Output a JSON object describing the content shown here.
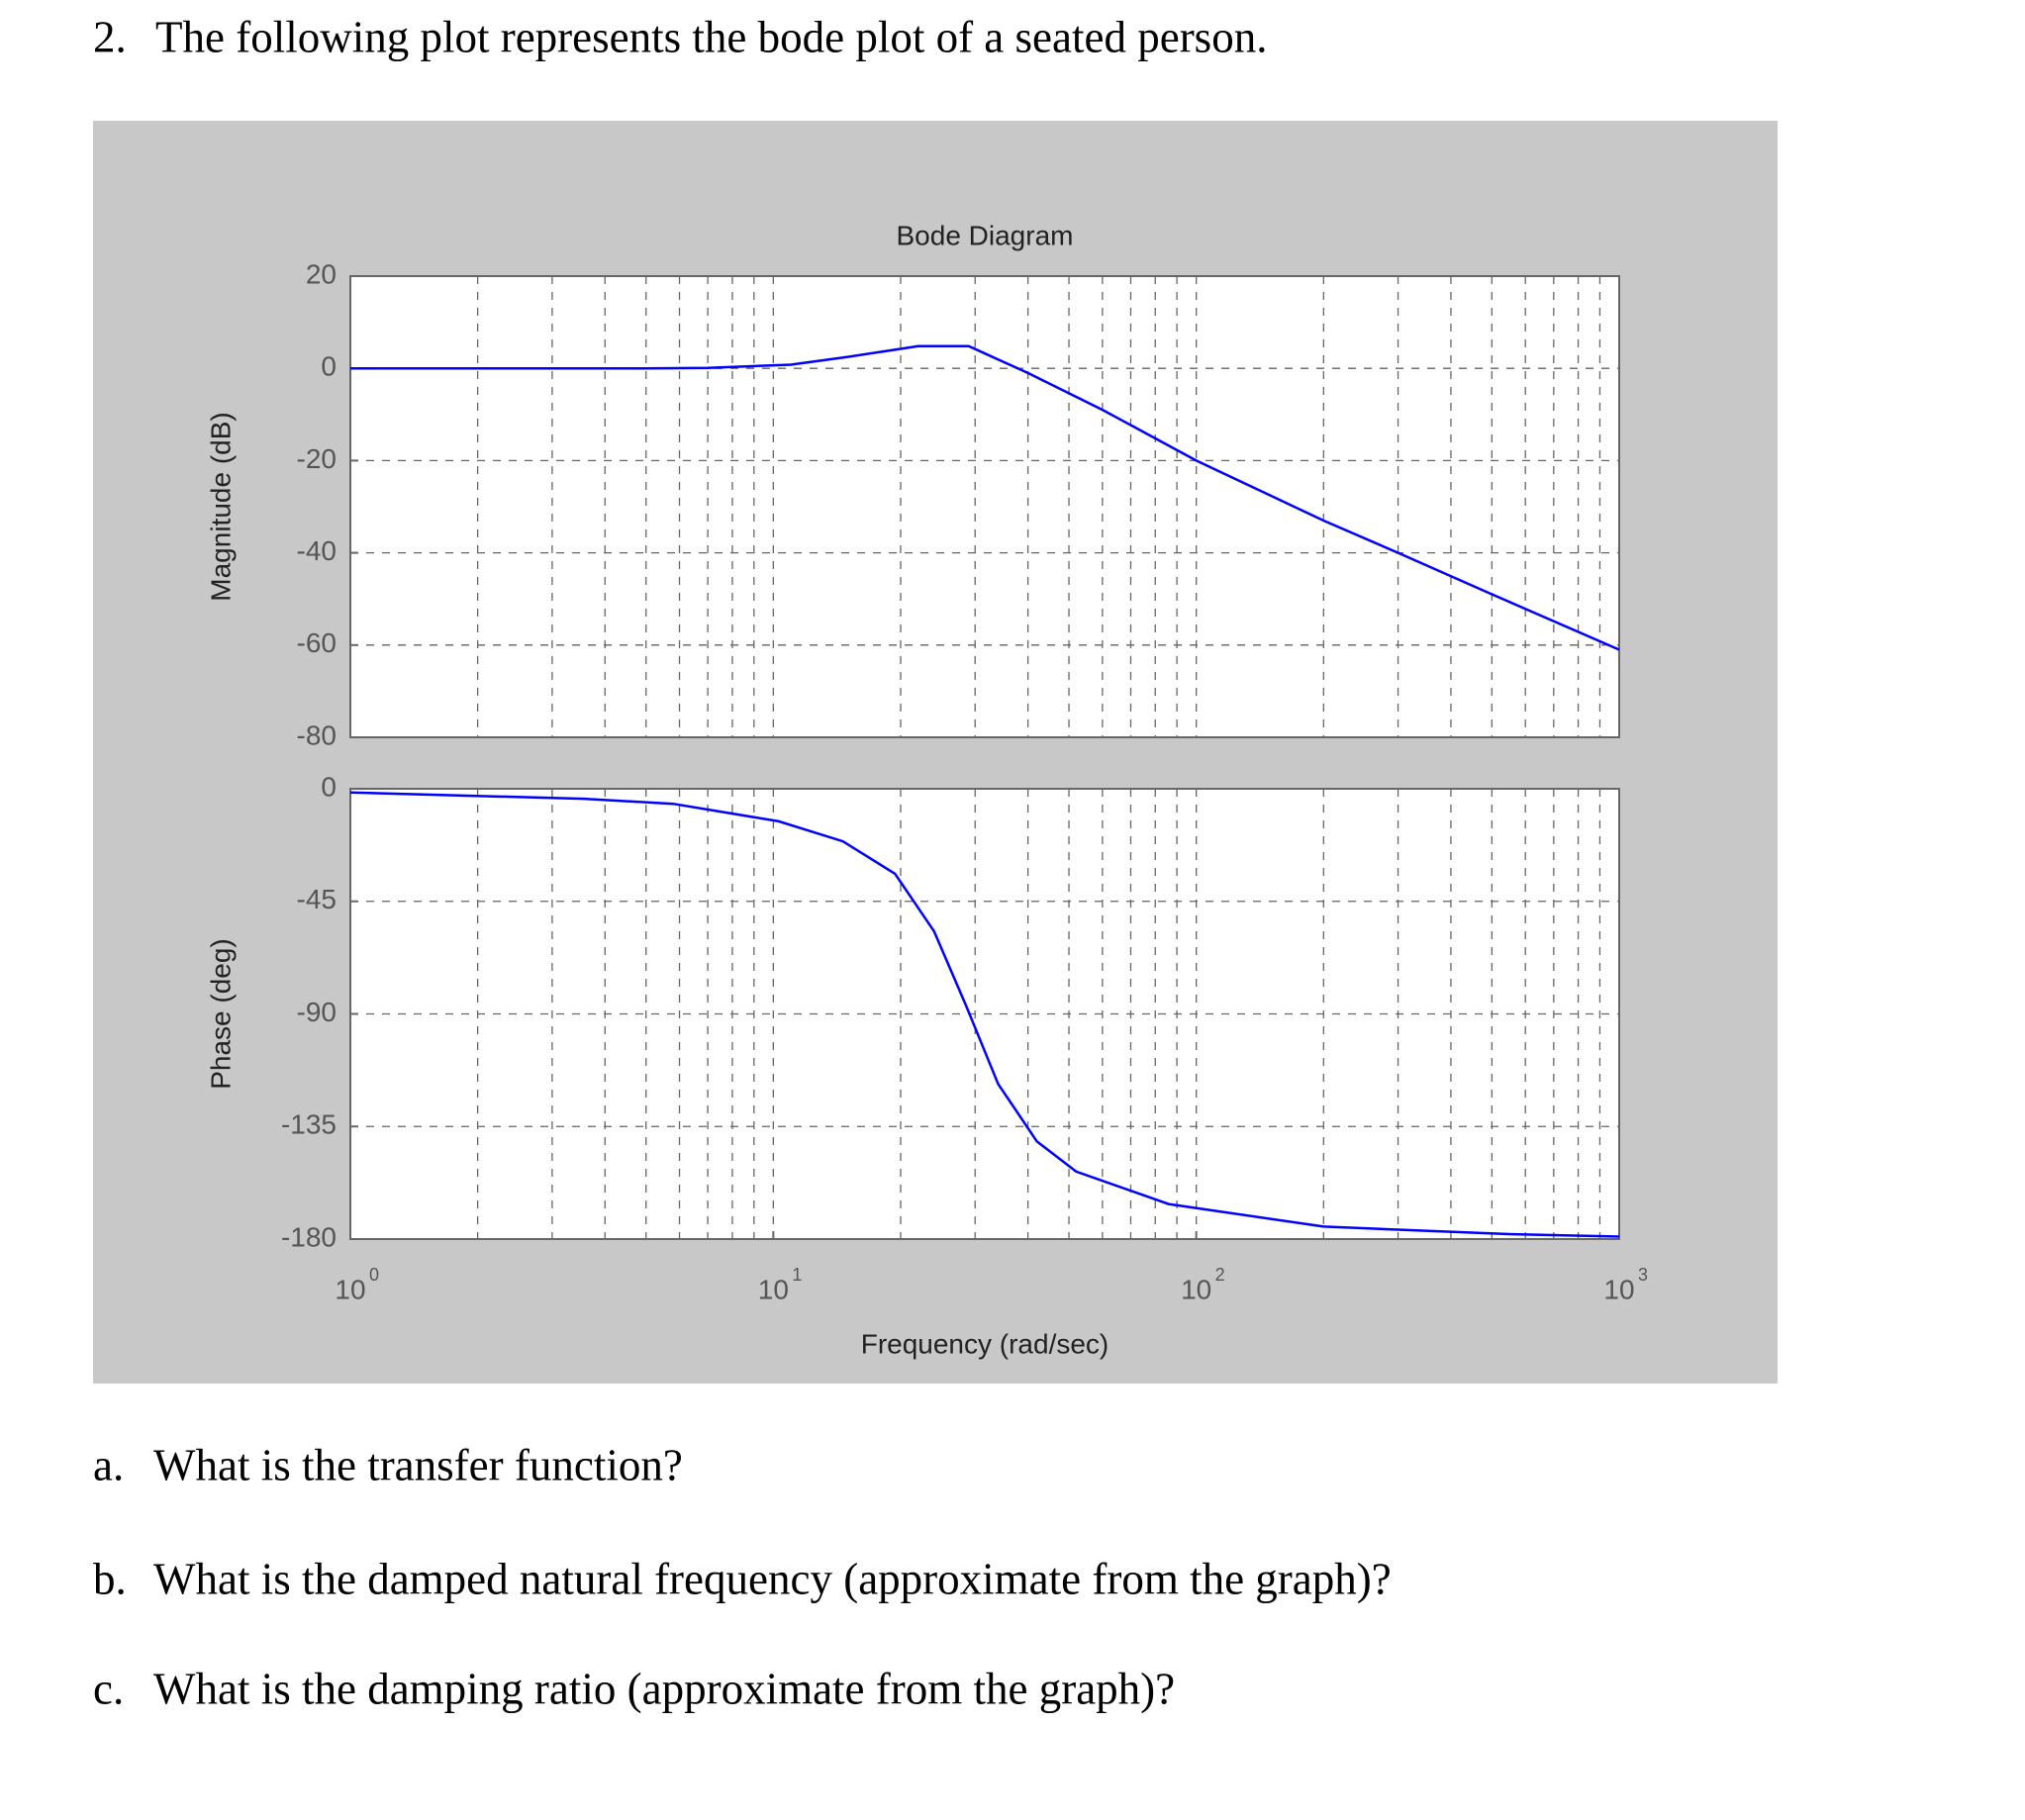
{
  "header": {
    "number": "2.",
    "text": "The following plot represents the bode plot of a seated person."
  },
  "chart_data": [
    {
      "type": "line",
      "title": "Bode Diagram",
      "ylabel": "Magnitude (dB)",
      "xscale": "log",
      "grid": true,
      "x": [
        1,
        2,
        5,
        7,
        11,
        15,
        22,
        29,
        40,
        60,
        100,
        200,
        300,
        500,
        1000
      ],
      "series": [
        {
          "color": "#0000ff",
          "values": [
            0,
            0,
            0,
            0.1,
            0.8,
            2.5,
            4.8,
            4.8,
            -1,
            -9,
            -20,
            -33,
            -40,
            -49,
            -61
          ]
        }
      ],
      "xlim": [
        1,
        1000
      ],
      "ylim": [
        -80,
        20
      ],
      "yticks": [
        -80,
        -60,
        -40,
        -20,
        0,
        20
      ]
    },
    {
      "type": "line",
      "ylabel": "Phase (deg)",
      "xlabel": "Frequency (rad/sec)",
      "xscale": "log",
      "grid": true,
      "x": [
        1,
        3.56,
        5.8,
        10.3,
        14.6,
        19.4,
        24,
        28.6,
        34,
        42,
        52,
        86,
        200,
        540,
        1000
      ],
      "series": [
        {
          "color": "#0000ff",
          "values": [
            -1.5,
            -4,
            -6,
            -13,
            -21,
            -34,
            -57,
            -87,
            -118,
            -141,
            -153,
            -166,
            -175,
            -178,
            -179
          ]
        }
      ],
      "xlim": [
        1,
        1000
      ],
      "ylim": [
        -180,
        0
      ],
      "yticks": [
        -180,
        -135,
        -90,
        -45,
        0
      ],
      "xticks": [
        {
          "value": 1,
          "label": "10",
          "exponent": "0"
        },
        {
          "value": 10,
          "label": "10",
          "exponent": "1"
        },
        {
          "value": 100,
          "label": "10",
          "exponent": "2"
        },
        {
          "value": 1000,
          "label": "10",
          "exponent": "3"
        }
      ]
    }
  ],
  "questions": [
    {
      "label": "a.",
      "text": "What is the transfer function?"
    },
    {
      "label": "b.",
      "text": "What is the damped natural frequency (approximate from the graph)?"
    },
    {
      "label": "c.",
      "text": "What is the damping ratio (approximate from the graph)?"
    }
  ]
}
